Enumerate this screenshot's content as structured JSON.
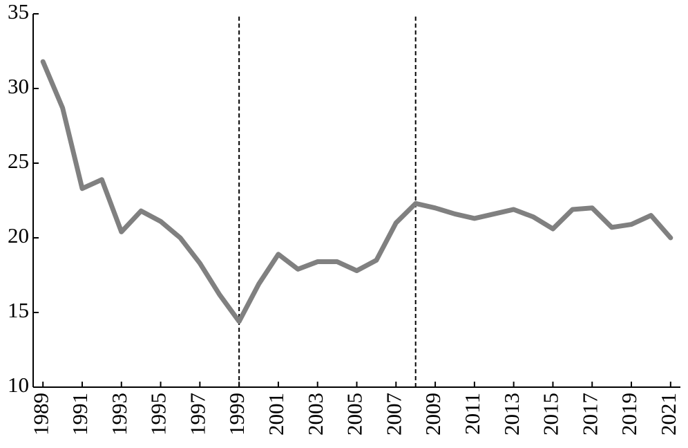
{
  "chart_data": {
    "type": "line",
    "x": [
      1989,
      1990,
      1991,
      1992,
      1993,
      1994,
      1995,
      1996,
      1997,
      1998,
      1999,
      2000,
      2001,
      2002,
      2003,
      2004,
      2005,
      2006,
      2007,
      2008,
      2009,
      2010,
      2011,
      2012,
      2013,
      2014,
      2015,
      2016,
      2017,
      2018,
      2019,
      2020,
      2021
    ],
    "series": [
      {
        "color": "#808080",
        "values": [
          31.8,
          28.7,
          23.3,
          23.9,
          20.4,
          21.8,
          21.1,
          20.0,
          18.3,
          16.2,
          14.4,
          16.9,
          18.9,
          17.9,
          18.4,
          18.4,
          17.8,
          18.5,
          21.0,
          22.3,
          22.0,
          21.6,
          21.3,
          21.6,
          21.9,
          21.4,
          20.6,
          21.9,
          22.0,
          20.7,
          20.9,
          21.5,
          20.0
        ]
      }
    ],
    "xlim": [
      1988.5,
      2021.5
    ],
    "xticks": [
      1989,
      1991,
      1993,
      1995,
      1997,
      1999,
      2001,
      2003,
      2005,
      2007,
      2009,
      2011,
      2013,
      2015,
      2017,
      2019,
      2021
    ],
    "ylim": [
      10,
      35
    ],
    "yticks": [
      10,
      15,
      20,
      25,
      30,
      35
    ],
    "vlines": [
      1999,
      2008
    ]
  }
}
